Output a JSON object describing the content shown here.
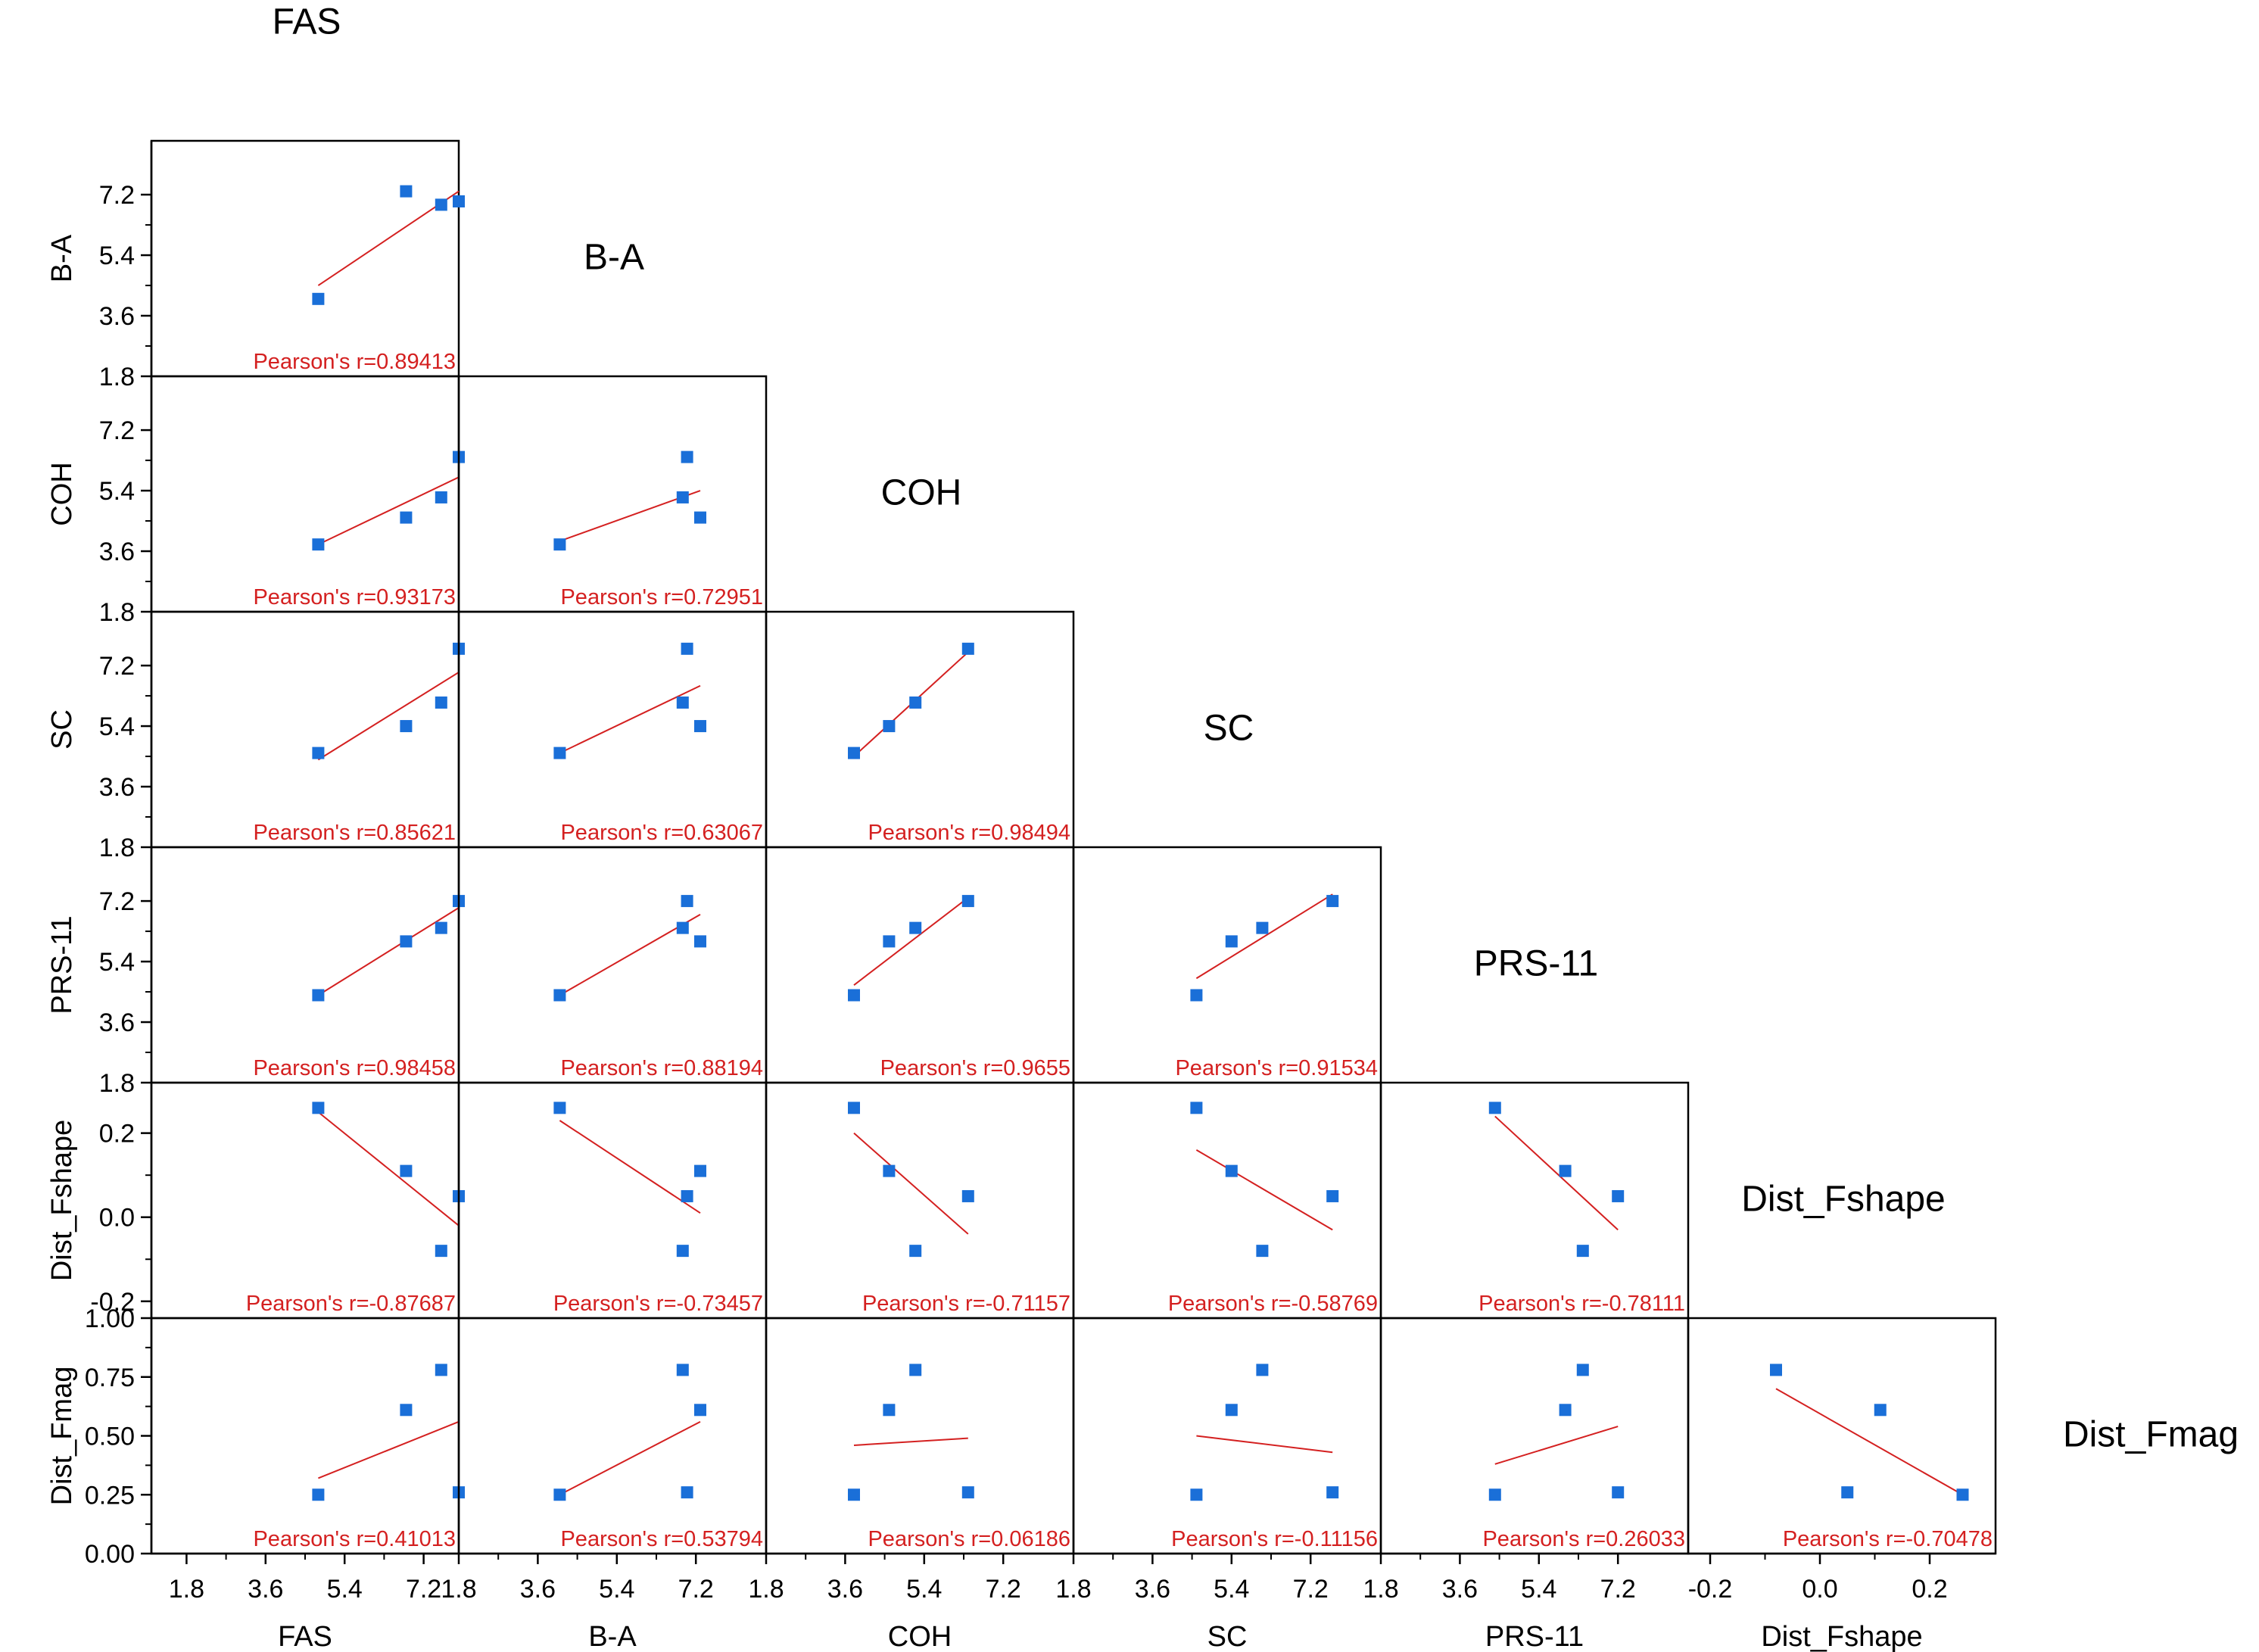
{
  "chart_data": {
    "type": "scatter",
    "title": "",
    "style": {
      "point_color": "#1a6fd8",
      "fit_color": "#d42020",
      "label_color": "#d42020",
      "axis_color": "#000000"
    },
    "variables": [
      {
        "name": "FAS",
        "ticks": [
          "1.8",
          "3.6",
          "5.4",
          "7.2"
        ],
        "tick_values": [
          1.8,
          3.6,
          5.4,
          7.2
        ],
        "range": [
          1.0,
          8.0
        ],
        "values": [
          4.8,
          6.8,
          7.6,
          8.0
        ]
      },
      {
        "name": "B-A",
        "ticks": [
          "1.8",
          "3.6",
          "5.4",
          "7.2"
        ],
        "tick_values": [
          1.8,
          3.6,
          5.4,
          7.2
        ],
        "range": [
          1.8,
          8.8
        ],
        "values": [
          4.1,
          7.3,
          6.9,
          7.0
        ]
      },
      {
        "name": "COH",
        "ticks": [
          "1.8",
          "3.6",
          "5.4",
          "7.2"
        ],
        "tick_values": [
          1.8,
          3.6,
          5.4,
          7.2
        ],
        "range": [
          1.8,
          8.8
        ],
        "values": [
          3.8,
          4.6,
          5.2,
          6.4
        ]
      },
      {
        "name": "SC",
        "ticks": [
          "1.8",
          "3.6",
          "5.4",
          "7.2"
        ],
        "tick_values": [
          1.8,
          3.6,
          5.4,
          7.2
        ],
        "range": [
          1.8,
          8.8
        ],
        "values": [
          4.6,
          5.4,
          6.1,
          7.7
        ]
      },
      {
        "name": "PRS-11",
        "ticks": [
          "1.8",
          "3.6",
          "5.4",
          "7.2"
        ],
        "tick_values": [
          1.8,
          3.6,
          5.4,
          7.2
        ],
        "range": [
          1.8,
          8.8
        ],
        "values": [
          4.4,
          6.0,
          6.4,
          7.2
        ]
      },
      {
        "name": "Dist_Fshape",
        "ticks": [
          "-0.2",
          "0.0",
          "0.2"
        ],
        "tick_values": [
          -0.2,
          0.0,
          0.2
        ],
        "range": [
          -0.24,
          0.32
        ],
        "values": [
          0.26,
          0.11,
          -0.08,
          0.05
        ]
      },
      {
        "name": "Dist_Fmag",
        "ticks": [
          "0.00",
          "0.25",
          "0.50",
          "0.75",
          "1.00"
        ],
        "tick_values": [
          0.0,
          0.25,
          0.5,
          0.75,
          1.0
        ],
        "range": [
          0.0,
          1.0
        ],
        "values": [
          0.25,
          0.61,
          0.78,
          0.26
        ]
      }
    ],
    "x_axis_labels": [
      "FAS",
      "B-A",
      "COH",
      "SC",
      "PRS-11",
      "Dist_Fshape"
    ],
    "y_axis_labels": [
      "B-A",
      "COH",
      "SC",
      "PRS-11",
      "Dist_Fshape",
      "Dist_Fmag"
    ],
    "panels": [
      {
        "row": 0,
        "col": 0,
        "x": [
          4.8,
          6.8,
          7.6,
          8.0
        ],
        "y": [
          4.1,
          7.3,
          6.9,
          7.0
        ],
        "fit": [
          [
            4.8,
            4.5
          ],
          [
            8.0,
            7.3
          ]
        ],
        "label": "Pearson's r=0.89413"
      },
      {
        "row": 1,
        "col": 0,
        "x": [
          4.8,
          6.8,
          7.6,
          8.0
        ],
        "y": [
          3.8,
          4.6,
          5.2,
          6.4
        ],
        "fit": [
          [
            4.8,
            3.8
          ],
          [
            8.0,
            5.8
          ]
        ],
        "label": "Pearson's r=0.93173"
      },
      {
        "row": 1,
        "col": 1,
        "x": [
          4.1,
          7.3,
          6.9,
          7.0
        ],
        "y": [
          3.8,
          4.6,
          5.2,
          6.4
        ],
        "fit": [
          [
            4.1,
            3.9
          ],
          [
            7.3,
            5.4
          ]
        ],
        "label": "Pearson's r=0.72951"
      },
      {
        "row": 2,
        "col": 0,
        "x": [
          4.8,
          6.8,
          7.6,
          8.0
        ],
        "y": [
          4.6,
          5.4,
          6.1,
          7.7
        ],
        "fit": [
          [
            4.8,
            4.4
          ],
          [
            8.0,
            7.0
          ]
        ],
        "label": "Pearson's r=0.85621"
      },
      {
        "row": 2,
        "col": 1,
        "x": [
          4.1,
          7.3,
          6.9,
          7.0
        ],
        "y": [
          4.6,
          5.4,
          6.1,
          7.7
        ],
        "fit": [
          [
            4.1,
            4.6
          ],
          [
            7.3,
            6.6
          ]
        ],
        "label": "Pearson's r=0.63067"
      },
      {
        "row": 2,
        "col": 2,
        "x": [
          3.8,
          4.6,
          5.2,
          6.4
        ],
        "y": [
          4.6,
          5.4,
          6.1,
          7.7
        ],
        "fit": [
          [
            3.8,
            4.5
          ],
          [
            6.4,
            7.6
          ]
        ],
        "label": "Pearson's r=0.98494"
      },
      {
        "row": 3,
        "col": 0,
        "x": [
          4.8,
          6.8,
          7.6,
          8.0
        ],
        "y": [
          4.4,
          6.0,
          6.4,
          7.2
        ],
        "fit": [
          [
            4.8,
            4.4
          ],
          [
            8.0,
            7.0
          ]
        ],
        "label": "Pearson's r=0.98458"
      },
      {
        "row": 3,
        "col": 1,
        "x": [
          4.1,
          7.3,
          6.9,
          7.0
        ],
        "y": [
          4.4,
          6.0,
          6.4,
          7.2
        ],
        "fit": [
          [
            4.1,
            4.4
          ],
          [
            7.3,
            6.8
          ]
        ],
        "label": "Pearson's r=0.88194"
      },
      {
        "row": 3,
        "col": 2,
        "x": [
          3.8,
          4.6,
          5.2,
          6.4
        ],
        "y": [
          4.4,
          6.0,
          6.4,
          7.2
        ],
        "fit": [
          [
            3.8,
            4.7
          ],
          [
            6.4,
            7.3
          ]
        ],
        "label": "Pearson's r=0.9655"
      },
      {
        "row": 3,
        "col": 3,
        "x": [
          4.6,
          5.4,
          6.1,
          7.7
        ],
        "y": [
          4.4,
          6.0,
          6.4,
          7.2
        ],
        "fit": [
          [
            4.6,
            4.9
          ],
          [
            7.7,
            7.4
          ]
        ],
        "label": "Pearson's r=0.91534"
      },
      {
        "row": 4,
        "col": 0,
        "x": [
          4.8,
          6.8,
          7.6,
          8.0
        ],
        "y": [
          0.26,
          0.11,
          -0.08,
          0.05
        ],
        "fit": [
          [
            4.8,
            0.25
          ],
          [
            8.0,
            -0.02
          ]
        ],
        "label": "Pearson's r=-0.87687"
      },
      {
        "row": 4,
        "col": 1,
        "x": [
          4.1,
          7.3,
          6.9,
          7.0
        ],
        "y": [
          0.26,
          0.11,
          -0.08,
          0.05
        ],
        "fit": [
          [
            4.1,
            0.23
          ],
          [
            7.3,
            0.01
          ]
        ],
        "label": "Pearson's r=-0.73457"
      },
      {
        "row": 4,
        "col": 2,
        "x": [
          3.8,
          4.6,
          5.2,
          6.4
        ],
        "y": [
          0.26,
          0.11,
          -0.08,
          0.05
        ],
        "fit": [
          [
            3.8,
            0.2
          ],
          [
            6.4,
            -0.04
          ]
        ],
        "label": "Pearson's r=-0.71157"
      },
      {
        "row": 4,
        "col": 3,
        "x": [
          4.6,
          5.4,
          6.1,
          7.7
        ],
        "y": [
          0.26,
          0.11,
          -0.08,
          0.05
        ],
        "fit": [
          [
            4.6,
            0.16
          ],
          [
            7.7,
            -0.03
          ]
        ],
        "label": "Pearson's r=-0.58769"
      },
      {
        "row": 4,
        "col": 4,
        "x": [
          4.4,
          6.0,
          6.4,
          7.2
        ],
        "y": [
          0.26,
          0.11,
          -0.08,
          0.05
        ],
        "fit": [
          [
            4.4,
            0.24
          ],
          [
            7.2,
            -0.03
          ]
        ],
        "label": "Pearson's r=-0.78111"
      },
      {
        "row": 5,
        "col": 0,
        "x": [
          4.8,
          6.8,
          7.6,
          8.0
        ],
        "y": [
          0.25,
          0.61,
          0.78,
          0.26
        ],
        "fit": [
          [
            4.8,
            0.32
          ],
          [
            8.0,
            0.56
          ]
        ],
        "label": "Pearson's r=0.41013"
      },
      {
        "row": 5,
        "col": 1,
        "x": [
          4.1,
          7.3,
          6.9,
          7.0
        ],
        "y": [
          0.25,
          0.61,
          0.78,
          0.26
        ],
        "fit": [
          [
            4.1,
            0.25
          ],
          [
            7.3,
            0.56
          ]
        ],
        "label": "Pearson's r=0.53794"
      },
      {
        "row": 5,
        "col": 2,
        "x": [
          3.8,
          4.6,
          5.2,
          6.4
        ],
        "y": [
          0.25,
          0.61,
          0.78,
          0.26
        ],
        "fit": [
          [
            3.8,
            0.46
          ],
          [
            6.4,
            0.49
          ]
        ],
        "label": "Pearson's r=0.06186"
      },
      {
        "row": 5,
        "col": 3,
        "x": [
          4.6,
          5.4,
          6.1,
          7.7
        ],
        "y": [
          0.25,
          0.61,
          0.78,
          0.26
        ],
        "fit": [
          [
            4.6,
            0.5
          ],
          [
            7.7,
            0.43
          ]
        ],
        "label": "Pearson's r=-0.11156"
      },
      {
        "row": 5,
        "col": 4,
        "x": [
          4.4,
          6.0,
          6.4,
          7.2
        ],
        "y": [
          0.25,
          0.61,
          0.78,
          0.26
        ],
        "fit": [
          [
            4.4,
            0.38
          ],
          [
            7.2,
            0.54
          ]
        ],
        "label": "Pearson's r=0.26033"
      },
      {
        "row": 5,
        "col": 5,
        "x": [
          0.26,
          0.11,
          -0.08,
          0.05
        ],
        "y": [
          0.25,
          0.61,
          0.78,
          0.26
        ],
        "fit": [
          [
            -0.08,
            0.7
          ],
          [
            0.26,
            0.25
          ]
        ],
        "label": "Pearson's r=-0.70478"
      }
    ]
  }
}
